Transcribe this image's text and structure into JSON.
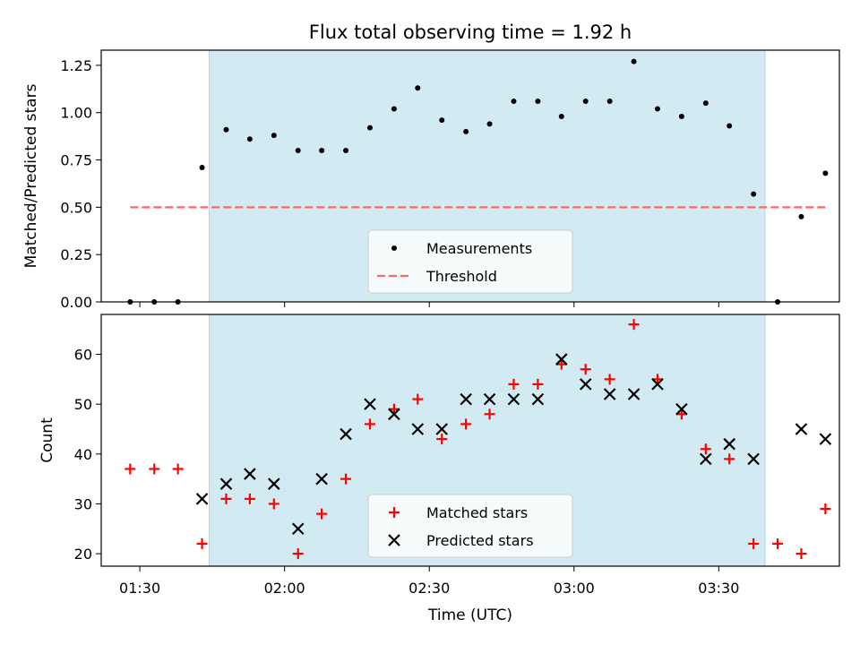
{
  "title": "Flux total observing time = 1.92 h",
  "x_axis": {
    "label": "Time (UTC)",
    "range_min": [
      82,
      235
    ],
    "ticks": [
      {
        "label": "01:30",
        "min": 90
      },
      {
        "label": "02:00",
        "min": 120
      },
      {
        "label": "02:30",
        "min": 150
      },
      {
        "label": "03:00",
        "min": 180
      },
      {
        "label": "03:30",
        "min": 210
      }
    ]
  },
  "shading": {
    "start_min": 104.4,
    "end_min": 219.6,
    "color": "#add8e6"
  },
  "chart_data": [
    {
      "type": "scatter",
      "panel": "top",
      "ylabel": "Matched/Predicted stars",
      "ylim": [
        0,
        1.33
      ],
      "yticks": [
        "0.00",
        "0.25",
        "0.50",
        "0.75",
        "1.00",
        "1.25"
      ],
      "grid": false,
      "legend": "lower-center",
      "series": [
        {
          "name": "Measurements",
          "color": "#000000",
          "marker": "dot",
          "points": [
            [
              88.0,
              0.0
            ],
            [
              93.0,
              0.0
            ],
            [
              97.9,
              0.0
            ],
            [
              102.9,
              0.71
            ],
            [
              107.9,
              0.91
            ],
            [
              112.8,
              0.86
            ],
            [
              117.8,
              0.88
            ],
            [
              122.8,
              0.8
            ],
            [
              127.7,
              0.8
            ],
            [
              132.7,
              0.8
            ],
            [
              137.7,
              0.92
            ],
            [
              142.7,
              1.02
            ],
            [
              147.6,
              1.13
            ],
            [
              152.6,
              0.96
            ],
            [
              157.6,
              0.9
            ],
            [
              162.5,
              0.94
            ],
            [
              167.5,
              1.06
            ],
            [
              172.5,
              1.06
            ],
            [
              177.4,
              0.98
            ],
            [
              182.4,
              1.06
            ],
            [
              187.4,
              1.06
            ],
            [
              192.4,
              1.27
            ],
            [
              197.3,
              1.02
            ],
            [
              202.3,
              0.98
            ],
            [
              207.3,
              1.05
            ],
            [
              212.2,
              0.93
            ],
            [
              217.2,
              0.57
            ],
            [
              222.2,
              0.0
            ],
            [
              227.1,
              0.45
            ],
            [
              232.1,
              0.68
            ]
          ]
        },
        {
          "name": "Threshold",
          "color": "#ff6666",
          "style": "dashed",
          "points": [
            [
              88.0,
              0.5
            ],
            [
              232.1,
              0.5
            ]
          ]
        }
      ]
    },
    {
      "type": "scatter",
      "panel": "bottom",
      "ylabel": "Count",
      "ylim": [
        17.5,
        68.0
      ],
      "yticks": [
        "20",
        "30",
        "40",
        "50",
        "60"
      ],
      "ytick_values": [
        20,
        30,
        40,
        50,
        60
      ],
      "grid": false,
      "legend": "lower-center",
      "series": [
        {
          "name": "Matched stars",
          "color": "#ff0000",
          "marker": "plus",
          "points": [
            [
              88.0,
              37
            ],
            [
              93.0,
              37
            ],
            [
              97.9,
              37
            ],
            [
              102.9,
              22
            ],
            [
              107.9,
              31
            ],
            [
              112.8,
              31
            ],
            [
              117.8,
              30
            ],
            [
              122.8,
              20
            ],
            [
              127.7,
              28
            ],
            [
              132.7,
              35
            ],
            [
              137.7,
              46
            ],
            [
              142.7,
              49
            ],
            [
              147.6,
              51
            ],
            [
              152.6,
              43
            ],
            [
              157.6,
              46
            ],
            [
              162.5,
              48
            ],
            [
              167.5,
              54
            ],
            [
              172.5,
              54
            ],
            [
              177.4,
              58
            ],
            [
              182.4,
              57
            ],
            [
              187.4,
              55
            ],
            [
              192.4,
              66
            ],
            [
              197.3,
              55
            ],
            [
              202.3,
              48
            ],
            [
              207.3,
              41
            ],
            [
              212.2,
              39
            ],
            [
              217.2,
              22
            ],
            [
              222.2,
              22
            ],
            [
              227.1,
              20
            ],
            [
              232.1,
              29
            ]
          ]
        },
        {
          "name": "Predicted stars",
          "color": "#000000",
          "marker": "x",
          "points": [
            [
              102.9,
              31
            ],
            [
              107.9,
              34
            ],
            [
              112.8,
              36
            ],
            [
              117.8,
              34
            ],
            [
              122.8,
              25
            ],
            [
              127.7,
              35
            ],
            [
              132.7,
              44
            ],
            [
              137.7,
              50
            ],
            [
              142.7,
              48
            ],
            [
              147.6,
              45
            ],
            [
              152.6,
              45
            ],
            [
              157.6,
              51
            ],
            [
              162.5,
              51
            ],
            [
              167.5,
              51
            ],
            [
              172.5,
              51
            ],
            [
              177.4,
              59
            ],
            [
              182.4,
              54
            ],
            [
              187.4,
              52
            ],
            [
              192.4,
              52
            ],
            [
              197.3,
              54
            ],
            [
              202.3,
              49
            ],
            [
              207.3,
              39
            ],
            [
              212.2,
              42
            ],
            [
              217.2,
              39
            ],
            [
              227.1,
              45
            ],
            [
              232.1,
              43
            ]
          ]
        }
      ]
    }
  ]
}
